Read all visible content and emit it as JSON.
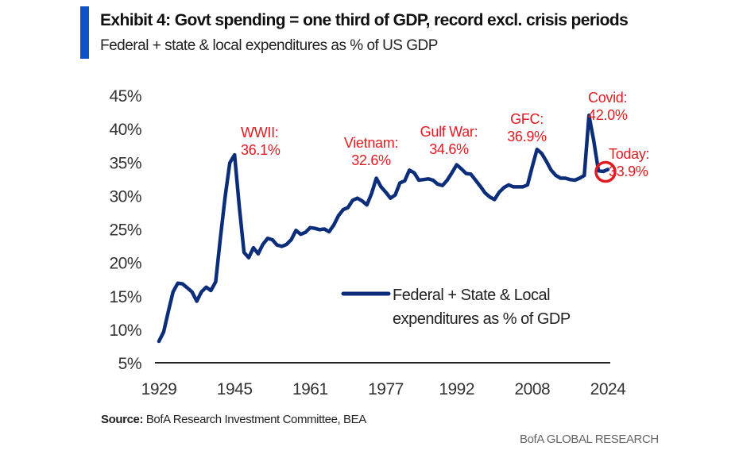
{
  "header": {
    "title": "Exhibit 4: Govt spending = one third of GDP, record excl. crisis periods",
    "subtitle": "Federal + state & local expenditures as % of US GDP",
    "accent_color": "#0a53c8"
  },
  "chart_data": {
    "type": "line",
    "title": "Exhibit 4: Govt spending = one third of GDP, record excl. crisis periods",
    "subtitle": "Federal + state & local expenditures as % of US GDP",
    "xlabel": "",
    "ylabel": "",
    "xlim": [
      1929,
      2024
    ],
    "ylim": [
      5,
      45
    ],
    "x_ticks": [
      1929,
      1945,
      1961,
      1977,
      1992,
      2008,
      2024
    ],
    "x_tick_labels": [
      "1929",
      "1945",
      "1961",
      "1977",
      "1992",
      "2008",
      "2024"
    ],
    "y_ticks": [
      5,
      10,
      15,
      20,
      25,
      30,
      35,
      40,
      45
    ],
    "y_tick_labels": [
      "5%",
      "10%",
      "15%",
      "20%",
      "25%",
      "30%",
      "35%",
      "40%",
      "45%"
    ],
    "grid": false,
    "legend_position": "bottom-center",
    "series": [
      {
        "name": "Federal + State & Local expenditures as % of GDP",
        "color": "#0c2d7a",
        "x": [
          1929,
          1930,
          1931,
          1932,
          1933,
          1934,
          1935,
          1936,
          1937,
          1938,
          1939,
          1940,
          1941,
          1942,
          1943,
          1944,
          1945,
          1946,
          1947,
          1948,
          1949,
          1950,
          1951,
          1952,
          1953,
          1954,
          1955,
          1956,
          1957,
          1958,
          1959,
          1960,
          1961,
          1962,
          1963,
          1964,
          1965,
          1966,
          1967,
          1968,
          1969,
          1970,
          1971,
          1972,
          1973,
          1974,
          1975,
          1976,
          1977,
          1978,
          1979,
          1980,
          1981,
          1982,
          1983,
          1984,
          1985,
          1986,
          1987,
          1988,
          1989,
          1990,
          1991,
          1992,
          1993,
          1994,
          1995,
          1996,
          1997,
          1998,
          1999,
          2000,
          2001,
          2002,
          2003,
          2004,
          2005,
          2006,
          2007,
          2008,
          2009,
          2010,
          2011,
          2012,
          2013,
          2014,
          2015,
          2016,
          2017,
          2018,
          2019,
          2020,
          2021,
          2022,
          2023,
          2024
        ],
        "values": [
          8.2,
          9.6,
          12.7,
          15.6,
          16.9,
          16.8,
          16.2,
          15.6,
          14.2,
          15.6,
          16.3,
          15.8,
          17.1,
          23.6,
          29.8,
          34.9,
          36.1,
          28.4,
          21.5,
          20.7,
          22.2,
          21.3,
          22.7,
          23.6,
          23.4,
          22.6,
          22.4,
          22.7,
          23.4,
          24.8,
          24.2,
          24.5,
          25.2,
          25.1,
          24.9,
          25.0,
          24.6,
          25.6,
          27.0,
          27.9,
          28.2,
          29.3,
          29.6,
          29.2,
          28.6,
          30.3,
          32.6,
          31.3,
          30.5,
          29.6,
          30.1,
          31.9,
          32.2,
          33.8,
          33.4,
          32.3,
          32.4,
          32.5,
          32.3,
          31.7,
          31.5,
          32.3,
          33.4,
          34.6,
          34.0,
          33.3,
          33.2,
          32.3,
          31.4,
          30.4,
          29.8,
          29.4,
          30.5,
          31.2,
          31.6,
          31.3,
          31.3,
          31.3,
          31.6,
          34.3,
          36.9,
          36.3,
          35.1,
          33.8,
          33.0,
          32.6,
          32.6,
          32.4,
          32.3,
          32.6,
          33.0,
          42.0,
          38.2,
          33.7,
          33.6,
          33.9
        ]
      }
    ],
    "annotations": [
      {
        "label": "WWII:",
        "value_label": "36.1%",
        "year": 1945,
        "value": 36.1
      },
      {
        "label": "Vietnam:",
        "value_label": "32.6%",
        "year": 1975,
        "value": 32.6
      },
      {
        "label": "Gulf War:",
        "value_label": "34.6%",
        "year": 1992,
        "value": 34.6
      },
      {
        "label": "GFC:",
        "value_label": "36.9%",
        "year": 2009,
        "value": 36.9
      },
      {
        "label": "Covid:",
        "value_label": "42.0%",
        "year": 2020,
        "value": 42.0
      },
      {
        "label": "Today:",
        "value_label": "33.9%",
        "year": 2024,
        "value": 33.9,
        "highlight_circle": true
      }
    ],
    "annotation_color": "#e11b22"
  },
  "legend": {
    "line1": "Federal + State & Local",
    "line2": "expenditures as % of GDP"
  },
  "footer": {
    "source_label": "Source:",
    "source_text": " BofA Research Investment Committee, BEA",
    "brand": "BofA GLOBAL RESEARCH"
  }
}
